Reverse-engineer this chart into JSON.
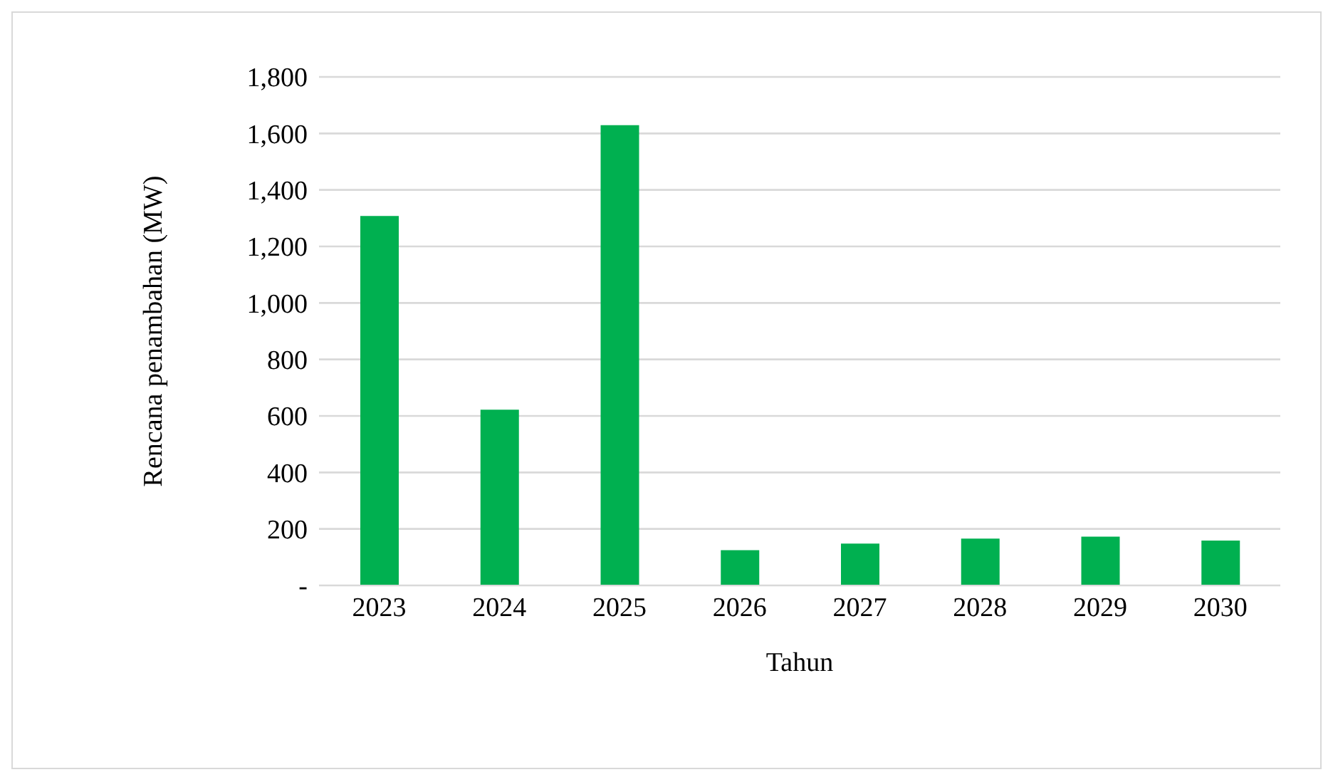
{
  "chart_data": {
    "type": "bar",
    "xlabel": "Tahun",
    "ylabel": "Rencana penambahan (MW)",
    "categories": [
      "2023",
      "2024",
      "2025",
      "2026",
      "2027",
      "2028",
      "2029",
      "2030"
    ],
    "values": [
      1308,
      622,
      1629,
      125,
      148,
      166,
      173,
      159
    ],
    "color": "#00b050",
    "ylim": [
      0,
      1800
    ],
    "yticks": [
      {
        "value": 0,
        "label": "-"
      },
      200,
      400,
      600,
      800,
      {
        "value": 1000,
        "label": "1,000"
      },
      {
        "value": 1200,
        "label": "1,200"
      },
      {
        "value": 1400,
        "label": "1,400"
      },
      {
        "value": 1600,
        "label": "1,600"
      },
      {
        "value": 1800,
        "label": "1,800"
      }
    ],
    "grid": "y"
  }
}
